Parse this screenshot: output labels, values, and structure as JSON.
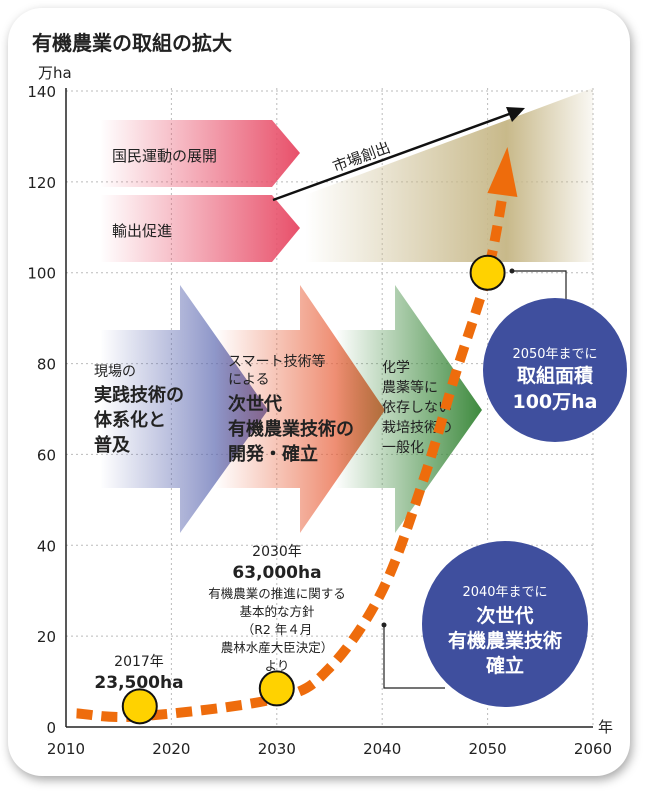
{
  "title": "有機農業の取組の拡大",
  "chart_data": {
    "type": "line",
    "title": "有機農業の取組の拡大",
    "ylabel": "万ha",
    "xlabel": "年",
    "xlim": [
      2010,
      2060
    ],
    "ylim": [
      0,
      140
    ],
    "x_ticks": [
      "2010",
      "2020",
      "2030",
      "2040",
      "2050",
      "2060"
    ],
    "y_ticks": [
      "0",
      "20",
      "40",
      "60",
      "80",
      "100",
      "120",
      "140"
    ],
    "grid": true,
    "points": [
      {
        "x": 2017,
        "y": 2.35,
        "label_year": "2017年",
        "label_value": "23,500ha"
      },
      {
        "x": 2030,
        "y": 6.3,
        "label_year": "2030年",
        "label_value": "63,000ha"
      },
      {
        "x": 2050,
        "y": 100
      }
    ],
    "trend": [
      [
        2011,
        3
      ],
      [
        2017,
        2.35
      ],
      [
        2030,
        6.3
      ],
      [
        2035,
        13
      ],
      [
        2040,
        30
      ],
      [
        2044,
        55
      ],
      [
        2047,
        78
      ],
      [
        2050,
        100
      ],
      [
        2051.5,
        118
      ]
    ],
    "colors": {
      "trend": "#ee6c0c",
      "marker": "#ffd200",
      "circle": "#3f4f9e"
    }
  },
  "annotations": {
    "p2030_note": [
      "有機農業の推進に関する",
      "基本的な方針",
      "（R2 年４月",
      "農林水産大臣決定）",
      "より"
    ],
    "pink1": "国民運動の展開",
    "pink2": "輸出促進",
    "market": "市場創出",
    "blue_arrow": {
      "small": "現場の",
      "big": [
        "実践技術の",
        "体系化と",
        "普及"
      ]
    },
    "salmon_arrow": {
      "small": [
        "スマート技術等",
        "による"
      ],
      "big": [
        "次世代",
        "有機農業技術の",
        "開発・確立"
      ]
    },
    "green_arrow": [
      "化学",
      "農薬等に",
      "依存しない",
      "栽培技術の",
      "一般化"
    ],
    "goal2050": {
      "small": "2050年までに",
      "big": [
        "取組面積",
        "100万ha"
      ]
    },
    "goal2040": {
      "small": "2040年までに",
      "big": [
        "次世代",
        "有機農業技術",
        "確立"
      ]
    }
  }
}
